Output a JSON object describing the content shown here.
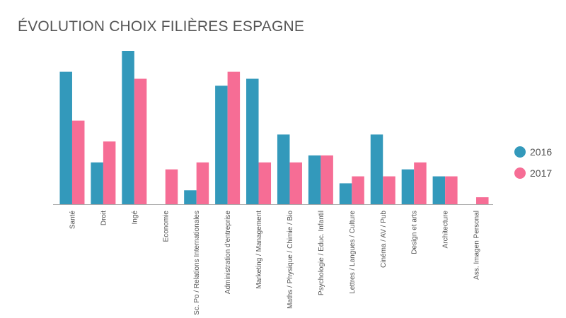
{
  "colors": {
    "2016": "#3399bb",
    "2017": "#f66d95",
    "axis": "#aaaaaa"
  },
  "chart_data": {
    "type": "bar",
    "title": "ÉVOLUTION CHOIX FILIÈRES ESPAGNE",
    "xlabel": "",
    "ylabel": "",
    "ylim": [
      0,
      22
    ],
    "grid": false,
    "legend_position": "right",
    "categories": [
      "Santé",
      "Droit",
      "Ingé",
      "Economie",
      "Sc. Po / Relations Internationales",
      "Administration d'entreprise",
      "Marketing / Management",
      "Maths / Physique / Chimie / Bio",
      "Psychologie / Educ. Infantil",
      "Lettres / Langues / Culture",
      "Cinéma / AV / Pub",
      "Design et arts",
      "Architecture",
      "Ass. Imagen Personal"
    ],
    "series": [
      {
        "name": "2016",
        "values": [
          19,
          6,
          22,
          0,
          2,
          17,
          18,
          10,
          7,
          3,
          10,
          5,
          4,
          0
        ]
      },
      {
        "name": "2017",
        "values": [
          12,
          9,
          18,
          5,
          6,
          19,
          6,
          6,
          7,
          4,
          4,
          6,
          4,
          1
        ]
      }
    ]
  }
}
